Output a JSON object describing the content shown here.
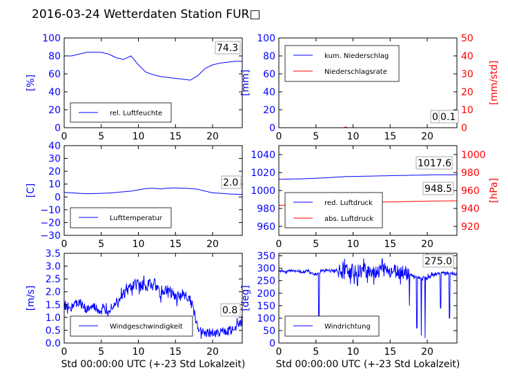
{
  "title": "2016-03-24 Wetterdaten Station FUR□",
  "colors": {
    "primary": "#0000ff",
    "secondary": "#ff0000",
    "frame": "#000000",
    "readout_box": "#aaaaaa"
  },
  "chart_data": [
    {
      "id": "humidity",
      "type": "line",
      "ylabel": "[%]",
      "xlabel": "",
      "xlim": [
        0,
        24
      ],
      "ylim": [
        0,
        100
      ],
      "xticks": [
        "0",
        "5",
        "10",
        "15",
        "20"
      ],
      "yticks": [
        "0",
        "20",
        "40",
        "60",
        "80",
        "100"
      ],
      "readouts": [
        "74.3"
      ],
      "series": [
        {
          "name": "rel. Luftfeuchte",
          "axis": "left",
          "style": "line",
          "x": [
            0,
            1,
            2,
            3,
            4,
            5,
            6,
            7,
            8,
            9,
            10,
            11,
            12,
            13,
            14,
            15,
            16,
            17,
            18,
            19,
            20,
            21,
            22,
            23,
            24
          ],
          "y": [
            80,
            80,
            82,
            84,
            84,
            84,
            82,
            78,
            76,
            80,
            70,
            62,
            59,
            57,
            56,
            55,
            54,
            53,
            58,
            66,
            70,
            72,
            73,
            74,
            74
          ]
        }
      ]
    },
    {
      "id": "precipitation",
      "type": "line",
      "ylabel": "[mm]",
      "y2label": "[mm/std]",
      "xlabel": "",
      "xlim": [
        0,
        24
      ],
      "ylim": [
        0,
        100
      ],
      "y2lim": [
        0,
        50
      ],
      "xticks": [
        "0",
        "5",
        "10",
        "15",
        "20"
      ],
      "yticks": [
        "0",
        "20",
        "40",
        "60",
        "80",
        "100"
      ],
      "y2ticks": [
        "0",
        "10",
        "20",
        "30",
        "40",
        "50"
      ],
      "readouts": [
        "0.0",
        "0.1"
      ],
      "series": [
        {
          "name": "kum. Niederschlag",
          "axis": "left",
          "style": "line",
          "x": [
            0,
            24
          ],
          "y": [
            0,
            0
          ]
        },
        {
          "name": "Niederschlagsrate",
          "axis": "right",
          "style": "line",
          "x": [
            0,
            8.85,
            8.9,
            9.0,
            9.1,
            9.15,
            24
          ],
          "y": [
            0,
            0,
            0.4,
            0,
            0.4,
            0,
            0
          ]
        }
      ]
    },
    {
      "id": "temperature",
      "type": "line",
      "ylabel": "[C]",
      "xlabel": "",
      "xlim": [
        0,
        24
      ],
      "ylim": [
        -30,
        40
      ],
      "xticks": [
        "0",
        "5",
        "10",
        "15",
        "20"
      ],
      "yticks": [
        "−30",
        "−20",
        "−10",
        "0",
        "10",
        "20",
        "30",
        "40"
      ],
      "readouts": [
        "2.0"
      ],
      "series": [
        {
          "name": "Lufttemperatur",
          "axis": "left",
          "style": "line",
          "x": [
            0,
            1,
            2,
            3,
            4,
            5,
            6,
            7,
            8,
            9,
            10,
            11,
            12,
            13,
            14,
            15,
            16,
            17,
            18,
            19,
            20,
            21,
            22,
            23,
            24
          ],
          "y": [
            3.5,
            3.2,
            2.8,
            2.5,
            2.6,
            2.8,
            3.0,
            3.5,
            4.0,
            4.5,
            5.5,
            6.5,
            6.8,
            6.2,
            6.8,
            7.0,
            6.8,
            6.5,
            6.0,
            4.5,
            3.2,
            2.8,
            2.4,
            2.1,
            2.0
          ]
        }
      ]
    },
    {
      "id": "pressure",
      "type": "line",
      "ylabel": "",
      "y2label": "[hPa]",
      "xlabel": "",
      "xlim": [
        0,
        24
      ],
      "ylim": [
        950,
        1050
      ],
      "y2lim": [
        910,
        1010
      ],
      "xticks": [
        "0",
        "5",
        "10",
        "15",
        "20"
      ],
      "yticks": [
        "960",
        "980",
        "1000",
        "1020",
        "1040"
      ],
      "y2ticks": [
        "920",
        "940",
        "960",
        "980",
        "1000"
      ],
      "readouts": [
        "1017.6",
        "948.5"
      ],
      "series": [
        {
          "name": "red. Luftdruck",
          "axis": "left",
          "style": "line",
          "x": [
            0,
            3,
            6,
            9,
            12,
            15,
            18,
            21,
            24
          ],
          "y": [
            1012.5,
            1013.0,
            1014.0,
            1015.5,
            1016.0,
            1016.5,
            1017.0,
            1017.5,
            1017.6
          ]
        },
        {
          "name": "abs. Luftdruck",
          "axis": "right",
          "style": "line",
          "x": [
            0,
            3,
            6,
            9,
            12,
            15,
            18,
            21,
            24
          ],
          "y": [
            943.5,
            944.0,
            945.0,
            946.0,
            946.8,
            947.3,
            947.8,
            948.3,
            948.5
          ]
        }
      ]
    },
    {
      "id": "windspeed",
      "type": "line",
      "ylabel": "[m/s]",
      "xlabel": "Std 00:00:00 UTC (+-23 Std Lokalzeit)",
      "xlim": [
        0,
        24
      ],
      "ylim": [
        0,
        3.5
      ],
      "xticks": [
        "0",
        "5",
        "10",
        "15",
        "20"
      ],
      "yticks": [
        "0.0",
        "0.5",
        "1.0",
        "1.5",
        "2.0",
        "2.5",
        "3.0",
        "3.5"
      ],
      "readouts": [
        "0.8"
      ],
      "series": [
        {
          "name": "Windgeschwindigkeit",
          "axis": "left",
          "style": "noisy",
          "x": [
            0,
            1,
            2,
            3,
            4,
            5,
            6,
            7,
            8,
            9,
            10,
            11,
            12,
            13,
            14,
            15,
            16,
            17,
            17.5,
            18,
            19,
            20,
            21,
            22,
            23,
            24
          ],
          "y": [
            1.5,
            1.4,
            1.6,
            1.3,
            1.4,
            1.2,
            1.3,
            1.6,
            1.9,
            2.2,
            2.3,
            2.2,
            2.4,
            1.9,
            2.1,
            1.8,
            1.9,
            1.7,
            1.2,
            0.6,
            0.4,
            0.4,
            0.4,
            0.5,
            0.6,
            0.8
          ],
          "noise": [
            0.35,
            0.45
          ]
        }
      ]
    },
    {
      "id": "winddirection",
      "type": "line",
      "ylabel": "[deg]",
      "xlabel": "Std 00:00:00 UTC (+-23 Std Lokalzeit)",
      "xlim": [
        0,
        24
      ],
      "ylim": [
        0,
        360
      ],
      "xticks": [
        "0",
        "5",
        "10",
        "15",
        "20"
      ],
      "yticks": [
        "0",
        "50",
        "100",
        "150",
        "200",
        "250",
        "300",
        "350"
      ],
      "readouts": [
        "275.0"
      ],
      "series": [
        {
          "name": "Windrichtung",
          "axis": "left",
          "style": "noisy",
          "x": [
            0,
            1,
            2,
            3,
            4,
            5,
            6,
            7,
            8,
            9,
            10,
            11,
            12,
            13,
            14,
            15,
            16,
            17,
            18,
            19,
            20,
            21,
            22,
            23,
            24
          ],
          "y": [
            290,
            288,
            292,
            285,
            288,
            275,
            290,
            292,
            288,
            286,
            290,
            285,
            292,
            290,
            293,
            288,
            285,
            280,
            270,
            260,
            265,
            278,
            280,
            282,
            275
          ],
          "noise": [
            12,
            60
          ],
          "spikes": [
            [
              5.4,
              90
            ],
            [
              10.6,
              230
            ],
            [
              17.6,
              150
            ],
            [
              18.6,
              60
            ],
            [
              19.2,
              30
            ],
            [
              19.7,
              20
            ],
            [
              21.8,
              140
            ],
            [
              23.0,
              100
            ]
          ]
        }
      ]
    }
  ]
}
